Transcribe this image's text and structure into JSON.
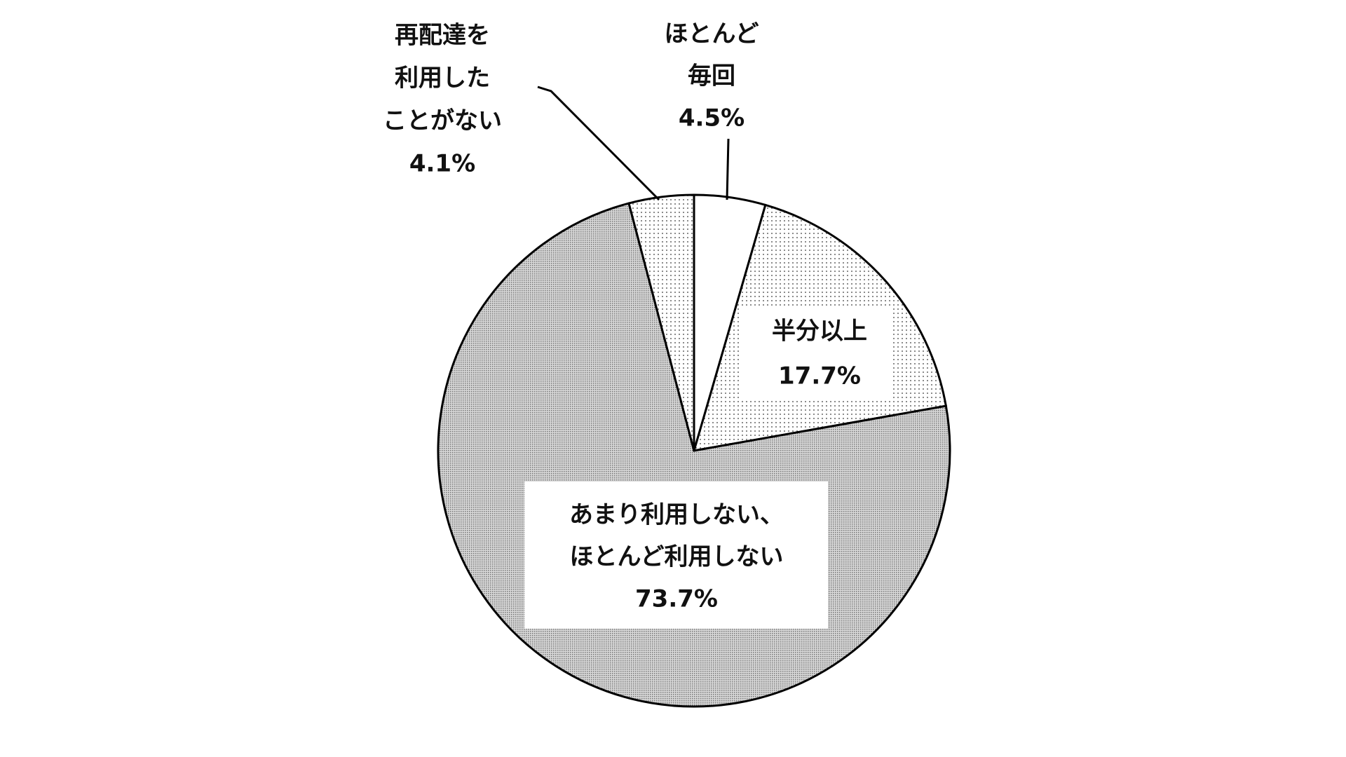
{
  "chart_data": {
    "type": "pie",
    "categories": [
      [
        "ほとんど",
        "毎回"
      ],
      [
        "半分以上"
      ],
      [
        "あまり利用しない、",
        "ほとんど利用しない"
      ],
      [
        "再配達を",
        "利用した",
        "ことがない"
      ]
    ],
    "values": [
      4.5,
      17.7,
      73.7,
      4.1
    ],
    "value_labels": [
      "4.5%",
      "17.7%",
      "73.7%",
      "4.1%"
    ]
  }
}
